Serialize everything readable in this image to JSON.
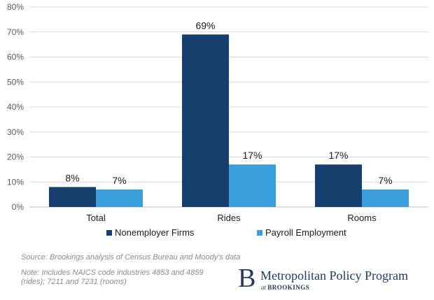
{
  "chart_data": {
    "type": "bar",
    "categories": [
      "Total",
      "Rides",
      "Rooms"
    ],
    "series": [
      {
        "name": "Nonemployer Firms",
        "values": [
          8,
          69,
          17
        ],
        "labels": [
          "8%",
          "69%",
          "17%"
        ],
        "color": "#163f6e"
      },
      {
        "name": "Payroll Employment",
        "values": [
          7,
          17,
          7
        ],
        "labels": [
          "7%",
          "17%",
          "7%"
        ],
        "color": "#3a9ddc"
      }
    ],
    "ylim": [
      0,
      80
    ],
    "yticks": [
      0,
      10,
      20,
      30,
      40,
      50,
      60,
      70,
      80
    ],
    "ytick_labels": [
      "0%",
      "10%",
      "20%",
      "30%",
      "40%",
      "50%",
      "60%",
      "70%",
      "80%"
    ],
    "grid": true,
    "legend_position": "bottom"
  },
  "footer": {
    "source": "Source: Brookings analysis of Census Bureau and Moody's data",
    "note": "Note: Includes NAICS code industries 4853 and 4859 (rides); 7211 and 7231 (rooms)"
  },
  "logo": {
    "mark": "B",
    "title": "Metropolitan Policy Program",
    "sub_at": "at",
    "sub_org": "BROOKINGS"
  },
  "colors": {
    "grid": "#d9d9d9",
    "axis_text": "#595959",
    "label_text": "#1a1a1a"
  }
}
